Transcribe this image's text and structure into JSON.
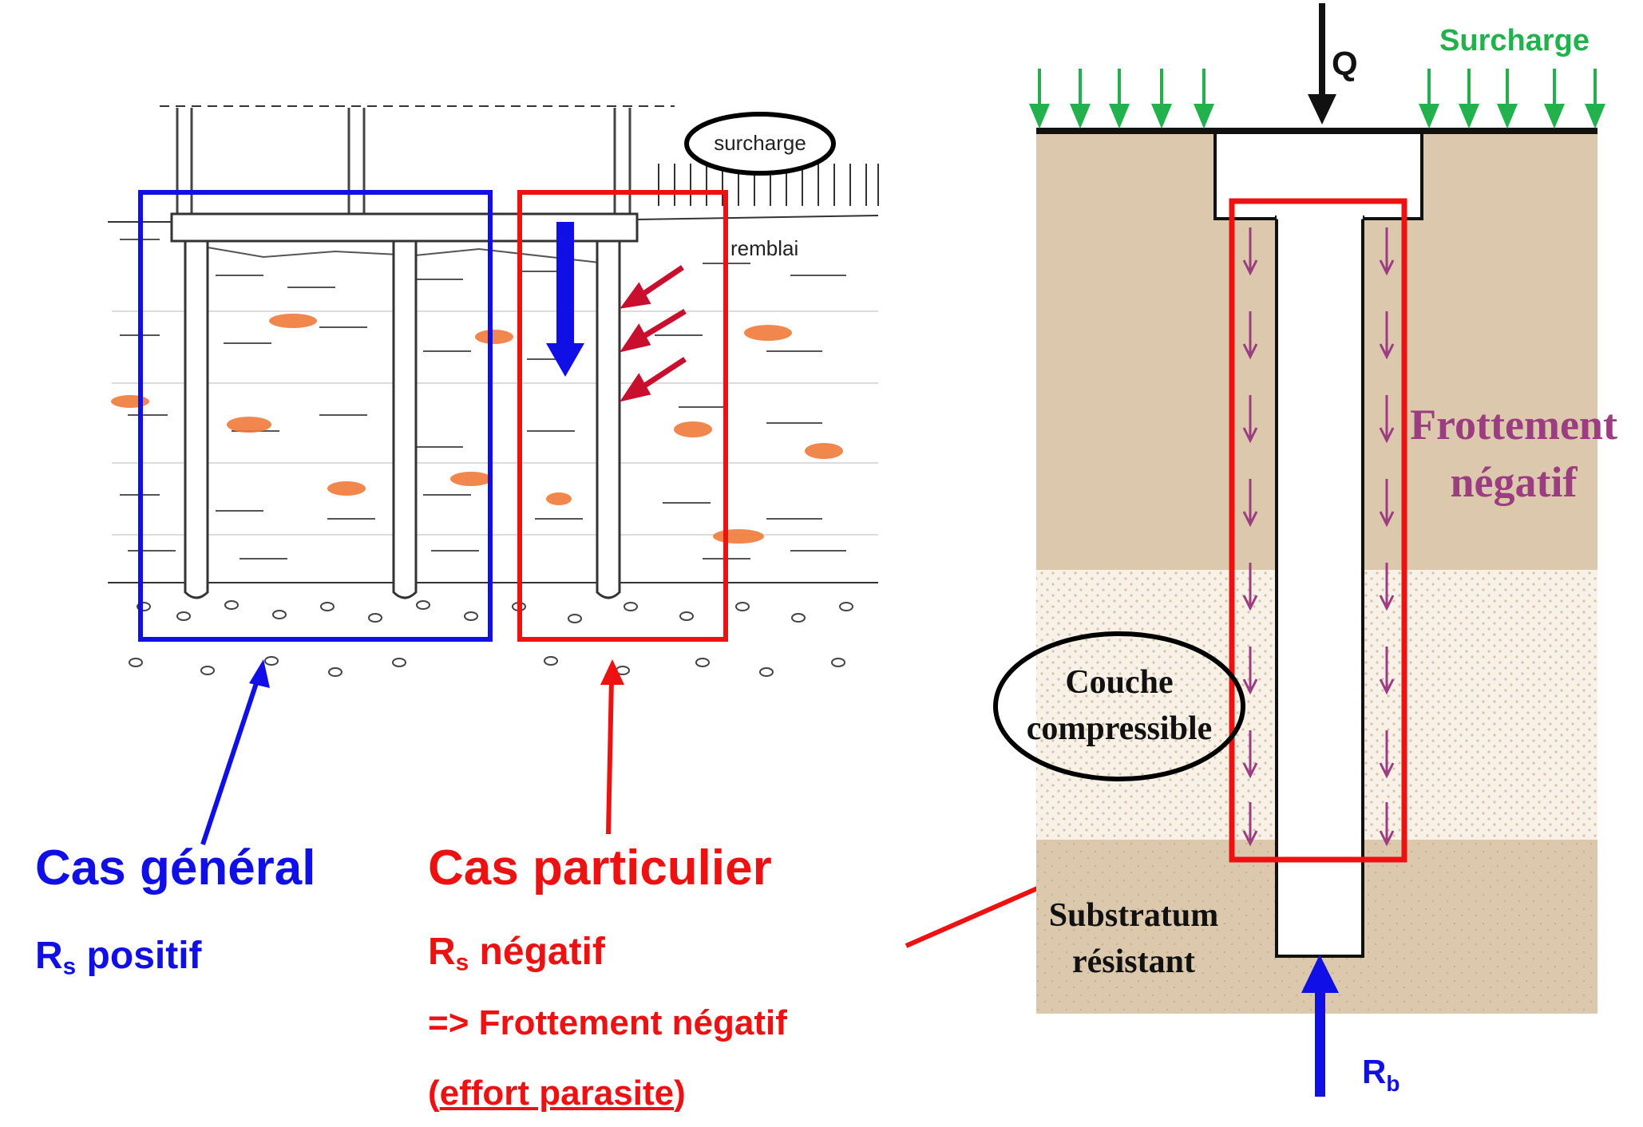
{
  "left_figure": {
    "surcharge_label": "surcharge",
    "remblai_label": "remblai"
  },
  "labels": {
    "cas_general": "Cas général",
    "rs_letter": "R",
    "rs_sub": "s",
    "positif": " positif",
    "cas_particulier": "Cas particulier",
    "negatif": " négatif",
    "arrow_prefix": "=> ",
    "frottement_negatif": "Frottement négatif",
    "paren_open": "(",
    "effort_parasite": "effort parasite",
    "paren_close": ")"
  },
  "right_figure": {
    "surcharge_label": "Surcharge",
    "q_label": "Q",
    "frottement_line1": "Frottement",
    "frottement_line2": "négatif",
    "couche_line1": "Couche",
    "couche_line2": "compressible",
    "substratum_line1": "Substratum",
    "substratum_line2": "résistant",
    "rb_letter": "R",
    "rb_sub": "b"
  },
  "colors": {
    "blue": "#1010e6",
    "red": "#ee1111",
    "green": "#22b14c",
    "purple": "#9b3d80",
    "soil": "#dcc9ad",
    "orange": "#f07a3a"
  }
}
